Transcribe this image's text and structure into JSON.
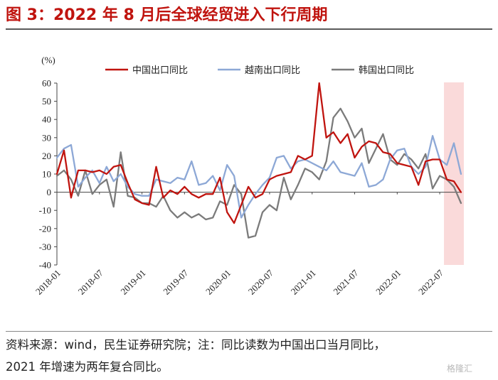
{
  "title": "图 3：2022 年 8 月后全球经贸进入下行周期",
  "note_line1": "资料来源：wind，民生证券研究院；注：同比读数为中国出口当月同比，",
  "note_line2": "2021 年增速为两年复合同比。",
  "watermark": "格隆汇",
  "chart_data": {
    "type": "line",
    "ylabel": "(%)",
    "ylim": [
      -40,
      60
    ],
    "yticks": [
      60,
      50,
      40,
      30,
      20,
      10,
      0,
      -10,
      -20,
      -30,
      -40
    ],
    "xlim": [
      "2018-01",
      "2022-10"
    ],
    "xtick_labels": [
      "2018-01",
      "2018-07",
      "2019-01",
      "2019-07",
      "2020-01",
      "2020-07",
      "2021-01",
      "2021-07",
      "2022-01",
      "2022-07"
    ],
    "legend_position": "top",
    "shaded_period": [
      "2022-08",
      "2022-10"
    ],
    "shade_color": "#f9d3d3",
    "x": [
      "2018-01",
      "2018-02",
      "2018-03",
      "2018-04",
      "2018-05",
      "2018-06",
      "2018-07",
      "2018-08",
      "2018-09",
      "2018-10",
      "2018-11",
      "2018-12",
      "2019-01",
      "2019-02",
      "2019-03",
      "2019-04",
      "2019-05",
      "2019-06",
      "2019-07",
      "2019-08",
      "2019-09",
      "2019-10",
      "2019-11",
      "2019-12",
      "2020-01",
      "2020-02",
      "2020-03",
      "2020-04",
      "2020-05",
      "2020-06",
      "2020-07",
      "2020-08",
      "2020-09",
      "2020-10",
      "2020-11",
      "2020-12",
      "2021-01",
      "2021-02",
      "2021-03",
      "2021-04",
      "2021-05",
      "2021-06",
      "2021-07",
      "2021-08",
      "2021-09",
      "2021-10",
      "2021-11",
      "2021-12",
      "2022-01",
      "2022-02",
      "2022-03",
      "2022-04",
      "2022-05",
      "2022-06",
      "2022-07",
      "2022-08",
      "2022-09",
      "2022-10"
    ],
    "series": [
      {
        "name": "中国出口同比",
        "color": "#c0140f",
        "values": [
          10,
          23,
          -3,
          12,
          12,
          11,
          12,
          10,
          14,
          15,
          5,
          -4,
          -6,
          -7,
          14,
          -3,
          1,
          -1,
          3,
          -1,
          -3,
          -1,
          -1,
          8,
          -11,
          -17,
          -7,
          3,
          -3,
          -1,
          7,
          9,
          10,
          11,
          20,
          18,
          20,
          60,
          30,
          33,
          27,
          32,
          19,
          25,
          28,
          27,
          22,
          21,
          16,
          15,
          14,
          4,
          17,
          18,
          18,
          7,
          6,
          0
        ]
      },
      {
        "name": "越南出口同比",
        "color": "#8da8d6",
        "values": [
          19,
          24,
          26,
          3,
          8,
          12,
          5,
          14,
          6,
          10,
          3,
          -1,
          -2,
          -2,
          7,
          6,
          5,
          8,
          7,
          17,
          4,
          5,
          9,
          1,
          15,
          9,
          -14,
          -7,
          -1,
          4,
          8,
          19,
          20,
          13,
          17,
          18,
          16,
          14,
          12,
          17,
          11,
          10,
          9,
          16,
          3,
          4,
          7,
          18,
          23,
          24,
          14,
          10,
          14,
          31,
          18,
          15,
          27,
          10
        ]
      },
      {
        "name": "韩国出口同比",
        "color": "#7b7b7b",
        "values": [
          9,
          12,
          7,
          -2,
          12,
          -1,
          4,
          7,
          -8,
          22,
          -2,
          -3,
          -6,
          -6,
          -8,
          -2,
          -10,
          -14,
          -11,
          -14,
          -12,
          -15,
          -14,
          -5,
          -7,
          4,
          -1,
          -25,
          -24,
          -11,
          -7,
          -10,
          8,
          -4,
          4,
          13,
          11,
          7,
          17,
          41,
          46,
          39,
          30,
          35,
          16,
          24,
          32,
          18,
          15,
          21,
          18,
          13,
          21,
          2,
          9,
          7,
          3,
          -6
        ]
      }
    ]
  }
}
